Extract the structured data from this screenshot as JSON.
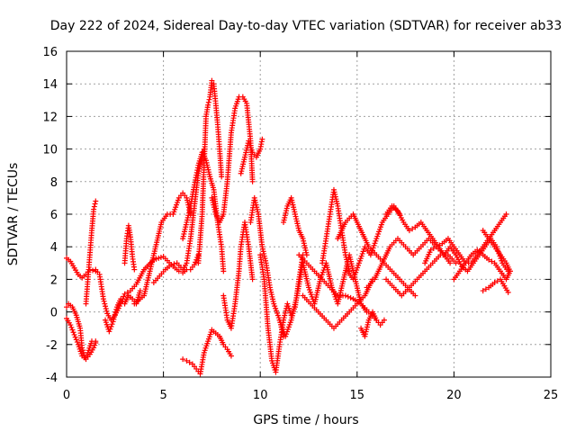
{
  "chart_data": {
    "type": "scatter",
    "title": "Day 222 of 2024, Sidereal Day-to-day VTEC variation (SDTVAR) for receiver ab33",
    "xlabel": "GPS time / hours",
    "ylabel": "SDTVAR / TECUs",
    "xlim": [
      0,
      25
    ],
    "ylim": [
      -4,
      16
    ],
    "xticks": [
      0,
      5,
      10,
      15,
      20,
      25
    ],
    "yticks": [
      -4,
      -2,
      0,
      2,
      4,
      6,
      8,
      10,
      12,
      14,
      16
    ],
    "grid": true,
    "marker": "+",
    "color": "#ff0000",
    "series": [
      {
        "name": "s1",
        "x": [
          0.0,
          0.2,
          0.4,
          0.6,
          0.8,
          1.0,
          1.2,
          1.5
        ],
        "y": [
          3.3,
          3.1,
          2.7,
          2.3,
          2.1,
          2.3,
          2.6,
          2.5
        ]
      },
      {
        "name": "s2",
        "x": [
          0.0,
          0.1,
          0.3,
          0.5,
          0.7,
          0.8,
          0.95,
          1.1,
          1.3,
          1.5
        ],
        "y": [
          0.3,
          0.5,
          0.3,
          -0.2,
          -1.0,
          -2.2,
          -2.8,
          -2.5,
          -1.8,
          -1.8
        ]
      },
      {
        "name": "s3",
        "x": [
          0.0,
          0.2,
          0.4,
          0.6,
          0.8,
          1.0,
          1.2,
          1.4,
          1.5
        ],
        "y": [
          -0.4,
          -0.8,
          -1.4,
          -2.0,
          -2.7,
          -2.9,
          -2.6,
          -2.2,
          -1.9
        ]
      },
      {
        "name": "s4",
        "x": [
          1.0,
          1.1,
          1.2,
          1.3,
          1.4,
          1.5
        ],
        "y": [
          0.5,
          2.0,
          3.5,
          5.0,
          6.3,
          6.8
        ]
      },
      {
        "name": "s5",
        "x": [
          1.5,
          1.7,
          1.9,
          2.1,
          2.3,
          2.5,
          2.8,
          3.0,
          3.3,
          3.6,
          4.0,
          4.5,
          5.0,
          5.4,
          5.8,
          6.0,
          6.2,
          6.4,
          6.6,
          6.8
        ],
        "y": [
          2.6,
          2.3,
          0.8,
          -0.1,
          -0.5,
          -0.2,
          0.5,
          1.1,
          1.3,
          1.7,
          2.6,
          3.2,
          3.4,
          2.9,
          2.5,
          2.4,
          2.6,
          2.6,
          2.9,
          3.5
        ]
      },
      {
        "name": "s6",
        "x": [
          2.0,
          2.2,
          2.4,
          2.6,
          2.8,
          3.0,
          3.2,
          3.4,
          3.6,
          3.8
        ],
        "y": [
          -0.5,
          -1.2,
          -0.6,
          0.3,
          0.8,
          0.5,
          1.0,
          0.8,
          0.5,
          1.3
        ]
      },
      {
        "name": "s7",
        "x": [
          3.0,
          3.1,
          3.2,
          3.3,
          3.4,
          3.5
        ],
        "y": [
          3.0,
          4.5,
          5.3,
          4.6,
          3.4,
          2.6
        ]
      },
      {
        "name": "s8",
        "x": [
          3.5,
          4.0,
          4.3,
          4.6,
          4.9,
          5.2,
          5.5,
          5.8,
          6.0,
          6.2,
          6.4
        ],
        "y": [
          0.5,
          1.0,
          2.5,
          4.0,
          5.5,
          6.0,
          6.0,
          7.0,
          7.3,
          7.0,
          6.0
        ]
      },
      {
        "name": "s9",
        "x": [
          4.5,
          4.8,
          5.1,
          5.4,
          5.7,
          6.0,
          6.2,
          6.4,
          6.6,
          6.8,
          7.0,
          7.1
        ],
        "y": [
          1.8,
          2.2,
          2.6,
          2.9,
          3.0,
          2.6,
          3.0,
          4.5,
          6.5,
          8.5,
          9.5,
          10.0
        ]
      },
      {
        "name": "s10",
        "x": [
          6.0,
          6.2,
          6.4,
          6.6,
          6.8,
          7.0,
          7.2,
          7.4,
          7.6,
          7.8,
          8.0,
          8.1
        ],
        "y": [
          4.5,
          5.5,
          6.5,
          7.8,
          9.0,
          9.8,
          9.3,
          8.3,
          7.5,
          5.5,
          4.0,
          2.5
        ]
      },
      {
        "name": "s11",
        "x": [
          6.8,
          7.0,
          7.1,
          7.2,
          7.3,
          7.4,
          7.5,
          7.6,
          7.7,
          7.8,
          7.9,
          8.0
        ],
        "y": [
          3.0,
          6.0,
          9.0,
          12.0,
          12.7,
          13.2,
          14.2,
          14.0,
          12.8,
          11.5,
          10.0,
          8.3
        ]
      },
      {
        "name": "s12",
        "x": [
          7.5,
          7.7,
          7.9,
          8.1,
          8.3,
          8.5,
          8.7,
          8.9,
          9.1,
          9.3,
          9.5,
          9.6
        ],
        "y": [
          7.0,
          6.0,
          5.5,
          6.0,
          8.0,
          11.0,
          12.5,
          13.2,
          13.2,
          12.8,
          10.5,
          8.0
        ]
      },
      {
        "name": "s13",
        "x": [
          8.1,
          8.3,
          8.5,
          8.7,
          8.9,
          9.0,
          9.2,
          9.4,
          9.6
        ],
        "y": [
          1.0,
          -0.5,
          -1.0,
          0.5,
          2.5,
          4.0,
          5.5,
          4.0,
          2.0
        ]
      },
      {
        "name": "s14",
        "x": [
          9.0,
          9.2,
          9.4,
          9.6,
          9.8,
          10.0,
          10.1
        ],
        "y": [
          8.5,
          9.5,
          10.5,
          9.8,
          9.5,
          10.0,
          10.6
        ]
      },
      {
        "name": "s15",
        "x": [
          6.0,
          6.2,
          6.5,
          6.7,
          6.9,
          7.1,
          7.3,
          7.5,
          7.7,
          7.9,
          8.1,
          8.3,
          8.5
        ],
        "y": [
          -2.9,
          -3.0,
          -3.2,
          -3.5,
          -3.8,
          -2.5,
          -1.8,
          -1.1,
          -1.3,
          -1.5,
          -2.0,
          -2.3,
          -2.7
        ]
      },
      {
        "name": "s16",
        "x": [
          9.5,
          9.7,
          9.9,
          10.1,
          10.3,
          10.5,
          10.7,
          11.0,
          11.2
        ],
        "y": [
          5.5,
          7.0,
          6.0,
          4.0,
          3.0,
          1.5,
          0.5,
          -0.5,
          -1.5
        ]
      },
      {
        "name": "s17",
        "x": [
          10.0,
          10.2,
          10.4,
          10.6,
          10.8,
          11.0,
          11.2,
          11.4,
          11.6,
          11.8,
          12.0,
          12.2
        ],
        "y": [
          3.5,
          2.0,
          -1.0,
          -3.0,
          -3.7,
          -2.0,
          -0.5,
          0.5,
          -0.2,
          0.3,
          2.0,
          3.5
        ]
      },
      {
        "name": "s18",
        "x": [
          11.0,
          11.3,
          11.6,
          11.9,
          12.2,
          12.5,
          12.8,
          13.1,
          13.4,
          13.7,
          14.0,
          14.3,
          14.6,
          14.9,
          15.2,
          15.5
        ],
        "y": [
          -0.5,
          -1.5,
          -0.5,
          1.0,
          3.0,
          1.5,
          0.5,
          2.0,
          3.0,
          1.5,
          0.5,
          2.0,
          3.5,
          2.0,
          0.5,
          0.0
        ]
      },
      {
        "name": "s19",
        "x": [
          11.2,
          11.4,
          11.6,
          11.8,
          12.0,
          12.2,
          12.4
        ],
        "y": [
          5.5,
          6.5,
          7.0,
          6.0,
          5.0,
          4.5,
          3.5
        ]
      },
      {
        "name": "s20",
        "x": [
          12.0,
          12.4,
          12.8,
          13.2,
          13.6,
          14.0,
          14.4,
          14.8,
          15.2,
          15.6,
          16.0
        ],
        "y": [
          3.5,
          3.0,
          2.5,
          2.0,
          1.5,
          1.0,
          1.0,
          0.8,
          0.5,
          0.0,
          -0.5
        ]
      },
      {
        "name": "s21",
        "x": [
          12.2,
          12.6,
          13.0,
          13.4,
          13.8,
          14.2,
          14.6,
          15.0,
          15.4,
          15.8
        ],
        "y": [
          1.0,
          0.5,
          0.0,
          -0.5,
          -1.0,
          -0.5,
          0.0,
          0.5,
          1.0,
          2.0
        ]
      },
      {
        "name": "s22",
        "x": [
          13.2,
          13.4,
          13.6,
          13.8,
          14.0,
          14.2,
          14.4,
          14.6
        ],
        "y": [
          3.0,
          4.5,
          6.0,
          7.5,
          6.5,
          5.0,
          3.5,
          2.5
        ]
      },
      {
        "name": "s23",
        "x": [
          14.0,
          14.4,
          14.8,
          15.2,
          15.6,
          16.0,
          16.4,
          16.8,
          17.2,
          17.6,
          18.0
        ],
        "y": [
          4.5,
          5.5,
          6.0,
          5.0,
          4.0,
          3.5,
          3.0,
          2.5,
          2.0,
          1.5,
          1.0
        ]
      },
      {
        "name": "s24",
        "x": [
          14.5,
          14.8,
          15.1,
          15.4,
          15.7,
          16.0,
          16.3,
          16.6,
          16.9,
          17.2
        ],
        "y": [
          2.5,
          2.0,
          3.0,
          4.0,
          3.5,
          4.5,
          5.5,
          6.0,
          6.5,
          6.0
        ]
      },
      {
        "name": "s25",
        "x": [
          15.2,
          15.4,
          15.6,
          15.8,
          16.0,
          16.2,
          16.4
        ],
        "y": [
          -1.0,
          -1.5,
          -0.5,
          0.0,
          -0.5,
          -0.8,
          -0.5
        ]
      },
      {
        "name": "s26",
        "x": [
          15.5,
          15.9,
          16.3,
          16.7,
          17.1,
          17.5,
          17.9,
          18.3,
          18.7,
          19.1,
          19.5
        ],
        "y": [
          1.5,
          2.0,
          3.0,
          4.0,
          4.5,
          4.0,
          3.5,
          4.0,
          4.5,
          4.0,
          3.5
        ]
      },
      {
        "name": "s27",
        "x": [
          16.5,
          16.8,
          17.1,
          17.4,
          17.7,
          18.0,
          18.3,
          18.6,
          18.9,
          19.2,
          19.5,
          19.8
        ],
        "y": [
          6.0,
          6.5,
          6.2,
          5.5,
          5.0,
          5.2,
          5.5,
          5.0,
          4.5,
          4.0,
          3.5,
          3.0
        ]
      },
      {
        "name": "s28",
        "x": [
          16.5,
          16.9,
          17.3,
          17.7,
          18.1,
          18.5,
          18.9,
          19.3,
          19.7,
          20.1
        ],
        "y": [
          2.0,
          1.5,
          1.0,
          1.5,
          2.0,
          2.5,
          3.0,
          3.5,
          3.5,
          3.0
        ]
      },
      {
        "name": "s29",
        "x": [
          18.5,
          18.8,
          19.1,
          19.4,
          19.7,
          20.0,
          20.3,
          20.6,
          20.9,
          21.2,
          21.5,
          21.8,
          22.1,
          22.4,
          22.7
        ],
        "y": [
          3.0,
          3.8,
          4.0,
          4.2,
          4.5,
          4.0,
          3.5,
          3.0,
          3.0,
          3.5,
          4.0,
          4.5,
          5.0,
          5.5,
          6.0
        ]
      },
      {
        "name": "s30",
        "x": [
          19.5,
          19.8,
          20.1,
          20.4,
          20.7,
          21.0,
          21.3,
          21.6,
          21.9,
          22.2,
          22.5,
          22.8
        ],
        "y": [
          3.5,
          4.0,
          3.5,
          2.8,
          2.5,
          3.0,
          3.5,
          4.0,
          4.5,
          4.0,
          3.0,
          2.5
        ]
      },
      {
        "name": "s31",
        "x": [
          20.0,
          20.3,
          20.6,
          20.9,
          21.2,
          21.5,
          21.8,
          22.1,
          22.4,
          22.7,
          22.9
        ],
        "y": [
          2.0,
          2.5,
          3.0,
          3.5,
          3.8,
          3.5,
          3.2,
          3.0,
          2.5,
          2.0,
          2.5
        ]
      },
      {
        "name": "s32",
        "x": [
          21.5,
          21.8,
          22.1,
          22.4,
          22.7,
          22.9
        ],
        "y": [
          5.0,
          4.5,
          4.0,
          3.5,
          3.0,
          2.5
        ]
      },
      {
        "name": "s33",
        "x": [
          21.5,
          21.8,
          22.1,
          22.4,
          22.6,
          22.8
        ],
        "y": [
          1.3,
          1.5,
          1.8,
          2.0,
          1.6,
          1.2
        ]
      }
    ]
  }
}
